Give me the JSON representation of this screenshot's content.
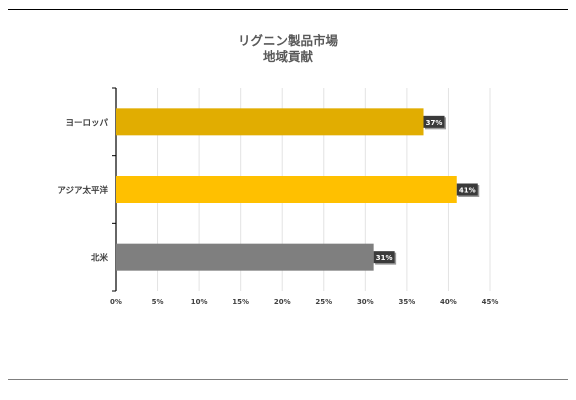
{
  "chart_data": {
    "type": "bar",
    "orientation": "horizontal",
    "title": [
      "リグニン製品市場",
      "地域貢献"
    ],
    "categories": [
      "ヨーロッパ",
      "アジア太平洋",
      "北米"
    ],
    "values": [
      37,
      41,
      31
    ],
    "data_labels": [
      "37%",
      "41%",
      "31%"
    ],
    "bar_colors": [
      "#e1ad01",
      "#ffc000",
      "#7f7f7f"
    ],
    "xlim": [
      0,
      45
    ],
    "xticks": [
      "0%",
      "5%",
      "10%",
      "15%",
      "20%",
      "25%",
      "30%",
      "35%",
      "40%",
      "45%"
    ],
    "grid": true,
    "legend": "none"
  }
}
